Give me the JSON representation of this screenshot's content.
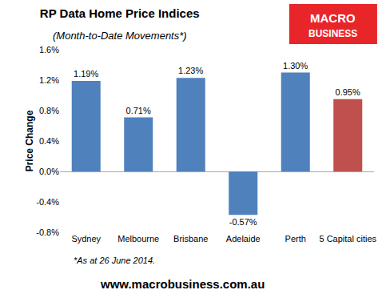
{
  "chart_data": {
    "type": "bar",
    "title": "RP Data Home Price Indices",
    "subtitle": "(Month-to-Date Movements*)",
    "y_label": "Price Change",
    "categories": [
      "Sydney",
      "Melbourne",
      "Brisbane",
      "Adelaide",
      "Perth",
      "5 Capital cities"
    ],
    "values": [
      1.19,
      0.71,
      1.23,
      -0.57,
      1.3,
      0.95
    ],
    "value_labels": [
      "1.19%",
      "0.71%",
      "1.23%",
      "-0.57%",
      "1.30%",
      "0.95%"
    ],
    "colors": [
      "#4f81bd",
      "#4f81bd",
      "#4f81bd",
      "#4f81bd",
      "#4f81bd",
      "#c0504d"
    ],
    "ylim": [
      -0.8,
      1.6
    ],
    "yticks": [
      {
        "value": -0.8,
        "label": "-0.8%"
      },
      {
        "value": -0.4,
        "label": "-0.4%"
      },
      {
        "value": 0.0,
        "label": "0.0%"
      },
      {
        "value": 0.4,
        "label": "0.4%"
      },
      {
        "value": 0.8,
        "label": "0.8%"
      },
      {
        "value": 1.2,
        "label": "1.2%"
      },
      {
        "value": 1.6,
        "label": "1.6%"
      }
    ],
    "grid": false,
    "data_labels": true,
    "annotations": [
      "*As at 26 June 2014.",
      "www.macrobusiness.com.au",
      "MACRO",
      "BUSINESS"
    ]
  }
}
